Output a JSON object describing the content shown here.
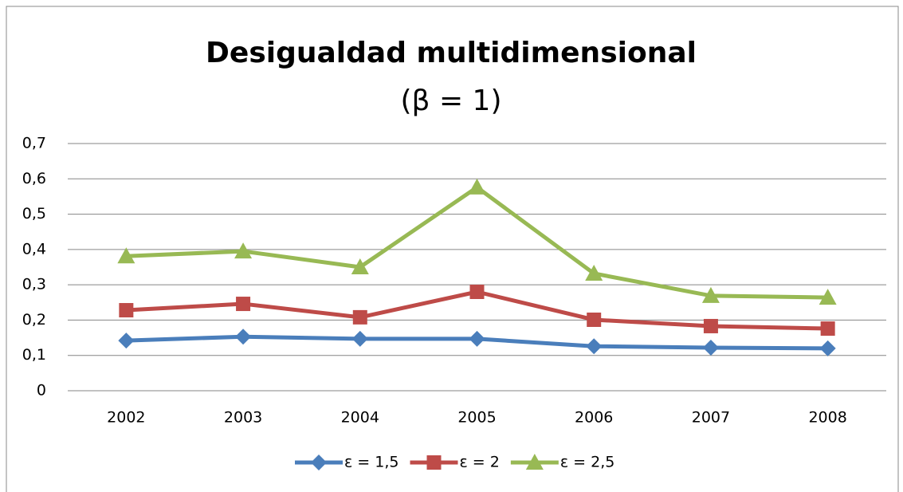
{
  "chart_data": {
    "type": "line",
    "title": "Desigualdad multidimensional",
    "subtitle": "(β = 1)",
    "categories": [
      "2002",
      "2003",
      "2004",
      "2005",
      "2006",
      "2007",
      "2008"
    ],
    "series": [
      {
        "name": "ε = 1,5",
        "color": "#4a7ebb",
        "marker": "diamond",
        "values": [
          0.142,
          0.153,
          0.147,
          0.147,
          0.126,
          0.122,
          0.12
        ]
      },
      {
        "name": "ε = 2",
        "color": "#be4b48",
        "marker": "square",
        "values": [
          0.228,
          0.246,
          0.208,
          0.28,
          0.201,
          0.183,
          0.176
        ]
      },
      {
        "name": "ε = 2,5",
        "color": "#98b954",
        "marker": "triangle",
        "values": [
          0.381,
          0.395,
          0.35,
          0.576,
          0.332,
          0.269,
          0.264
        ]
      }
    ],
    "ylim": [
      0,
      0.7
    ],
    "yticks": [
      0,
      {
        "value": 0.1,
        "label": "0,1"
      },
      {
        "value": 0.2,
        "label": "0,2"
      },
      {
        "value": 0.3,
        "label": "0,3"
      },
      {
        "value": 0.4,
        "label": "0,4"
      },
      {
        "value": 0.5,
        "label": "0,5"
      },
      {
        "value": 0.6,
        "label": "0,6"
      },
      {
        "value": 0.7,
        "label": "0,7"
      }
    ],
    "grid": true,
    "legend": "bottom"
  }
}
